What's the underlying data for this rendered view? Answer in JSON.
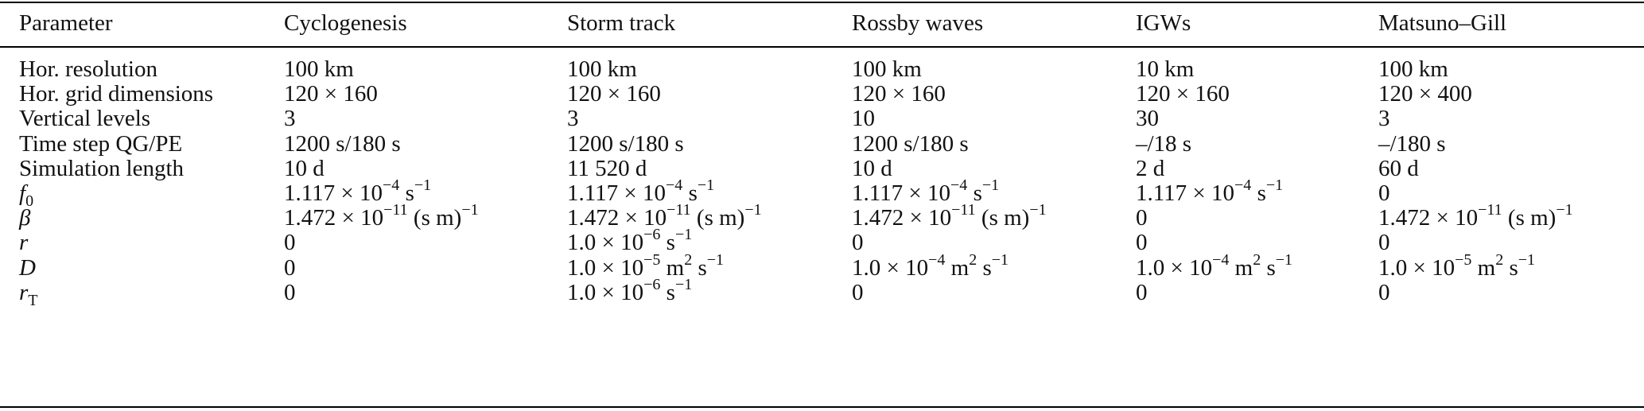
{
  "table": {
    "headers": [
      "Parameter",
      "Cyclogenesis",
      "Storm track",
      "Rossby waves",
      "IGWs",
      "Matsuno–Gill"
    ],
    "rows": [
      {
        "param": "Hor. resolution",
        "cells": [
          "100 km",
          "100 km",
          "100 km",
          "10 km",
          "100 km"
        ]
      },
      {
        "param": "Hor. grid dimensions",
        "cells": [
          "120 × 160",
          "120 × 160",
          "120 × 160",
          "120 × 160",
          "120 × 400"
        ]
      },
      {
        "param": "Vertical levels",
        "cells": [
          "3",
          "3",
          "10",
          "30",
          "3"
        ]
      },
      {
        "param": "Time step QG/PE",
        "cells": [
          "1200 s/180 s",
          "1200 s/180 s",
          "1200 s/180 s",
          "–/18 s",
          "–/180 s"
        ]
      },
      {
        "param": "Simulation length",
        "cells": [
          "10 d",
          "11 520 d",
          "10 d",
          "2 d",
          "60 d"
        ]
      },
      {
        "param_symbol": "f",
        "param_sub": "0",
        "cells": [
          {
            "mant": "1.117 × 10",
            "exp": "−4",
            "unit": " s",
            "unit_exp": "−1"
          },
          {
            "mant": "1.117 × 10",
            "exp": "−4",
            "unit": " s",
            "unit_exp": "−1"
          },
          {
            "mant": "1.117 × 10",
            "exp": "−4",
            "unit": " s",
            "unit_exp": "−1"
          },
          {
            "mant": "1.117 × 10",
            "exp": "−4",
            "unit": " s",
            "unit_exp": "−1"
          },
          {
            "plain": "0"
          }
        ]
      },
      {
        "param_symbol": "β",
        "cells": [
          {
            "mant": "1.472 × 10",
            "exp": "−11",
            "unit": " (s m)",
            "unit_exp": "−1"
          },
          {
            "mant": "1.472 × 10",
            "exp": "−11",
            "unit": " (s m)",
            "unit_exp": "−1"
          },
          {
            "mant": "1.472 × 10",
            "exp": "−11",
            "unit": " (s m)",
            "unit_exp": "−1"
          },
          {
            "plain": "0"
          },
          {
            "mant": "1.472 × 10",
            "exp": "−11",
            "unit": " (s m)",
            "unit_exp": "−1"
          }
        ]
      },
      {
        "param_symbol": "r",
        "cells": [
          {
            "plain": "0"
          },
          {
            "mant": "1.0 × 10",
            "exp": "−6",
            "unit": " s",
            "unit_exp": "−1"
          },
          {
            "plain": "0"
          },
          {
            "plain": "0"
          },
          {
            "plain": "0"
          }
        ]
      },
      {
        "param_symbol": "D",
        "cells": [
          {
            "plain": "0"
          },
          {
            "mant": "1.0 × 10",
            "exp": "−5",
            "unit": " m",
            "unit_exp": "2",
            "unit2": " s",
            "unit2_exp": "−1"
          },
          {
            "mant": "1.0 × 10",
            "exp": "−4",
            "unit": " m",
            "unit_exp": "2",
            "unit2": " s",
            "unit2_exp": "−1"
          },
          {
            "mant": "1.0 × 10",
            "exp": "−4",
            "unit": " m",
            "unit_exp": "2",
            "unit2": " s",
            "unit2_exp": "−1"
          },
          {
            "mant": "1.0 × 10",
            "exp": "−5",
            "unit": " m",
            "unit_exp": "2",
            "unit2": " s",
            "unit2_exp": "−1"
          }
        ]
      },
      {
        "param_symbol": "r",
        "param_sub": "T",
        "cells": [
          {
            "plain": "0"
          },
          {
            "mant": "1.0 × 10",
            "exp": "−6",
            "unit": " s",
            "unit_exp": "−1"
          },
          {
            "plain": "0"
          },
          {
            "plain": "0"
          },
          {
            "plain": "0"
          }
        ]
      }
    ]
  }
}
